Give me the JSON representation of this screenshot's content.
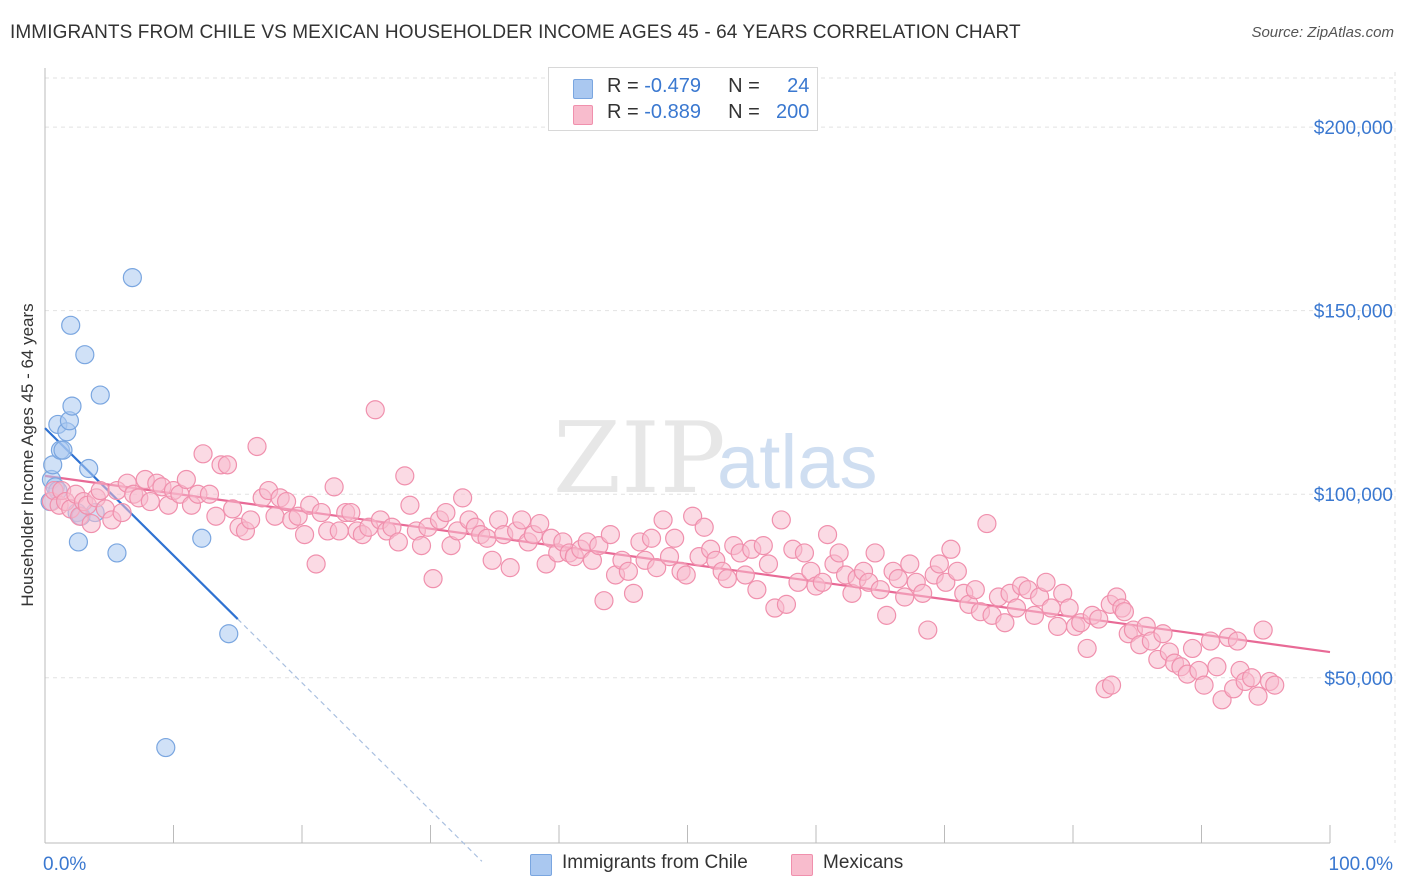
{
  "title": "IMMIGRANTS FROM CHILE VS MEXICAN HOUSEHOLDER INCOME AGES 45 - 64 YEARS CORRELATION CHART",
  "source": "Source: ZipAtlas.com",
  "watermark": {
    "zip": "ZIP",
    "atlas": "atlas"
  },
  "legend": {
    "r_label": "R =",
    "n_label": "N =",
    "rows": [
      {
        "r": "-0.479",
        "n": "24",
        "color": "#aac8f0",
        "border": "#7aa6e0"
      },
      {
        "r": "-0.889",
        "n": "200",
        "color": "#f8bccd",
        "border": "#f090ad"
      }
    ]
  },
  "bottom_legend": [
    {
      "label": "Immigrants from Chile",
      "color": "#aac8f0",
      "border": "#7aa6e0"
    },
    {
      "label": "Mexicans",
      "color": "#f8bccd",
      "border": "#f090ad"
    }
  ],
  "chart_data": {
    "type": "scatter",
    "title": "IMMIGRANTS FROM CHILE VS MEXICAN HOUSEHOLDER INCOME AGES 45 - 64 YEARS CORRELATION CHART",
    "xlabel": "",
    "ylabel": "Householder Income Ages 45 - 64 years",
    "xlim": [
      0,
      100
    ],
    "ylim": [
      5000,
      215000
    ],
    "x_tick_labels": [
      "0.0%",
      "100.0%"
    ],
    "y_ticks": [
      50000,
      100000,
      150000,
      200000
    ],
    "y_tick_labels": [
      "$50,000",
      "$100,000",
      "$150,000",
      "$200,000"
    ],
    "grid": true,
    "legend_position": "top-center",
    "series": [
      {
        "name": "Immigrants from Chile",
        "color": "#aac8f0",
        "edge": "#7aa6e0",
        "line_color": "#2f72d2",
        "trend": {
          "x": [
            0.0,
            15.0
          ],
          "y": [
            118000,
            66000
          ]
        },
        "trend_dashed": {
          "x": [
            15.0,
            34.0
          ],
          "y": [
            66000,
            0
          ]
        },
        "points": [
          [
            0.4,
            98000
          ],
          [
            0.5,
            104000
          ],
          [
            0.6,
            108000
          ],
          [
            0.8,
            102000
          ],
          [
            1.0,
            101000
          ],
          [
            1.0,
            119000
          ],
          [
            1.2,
            112000
          ],
          [
            1.4,
            112000
          ],
          [
            1.7,
            117000
          ],
          [
            1.9,
            120000
          ],
          [
            2.0,
            146000
          ],
          [
            2.1,
            124000
          ],
          [
            2.5,
            95000
          ],
          [
            2.6,
            87000
          ],
          [
            2.8,
            94000
          ],
          [
            3.1,
            138000
          ],
          [
            3.4,
            107000
          ],
          [
            3.9,
            95000
          ],
          [
            4.3,
            127000
          ],
          [
            5.6,
            84000
          ],
          [
            6.8,
            159000
          ],
          [
            9.4,
            31000
          ],
          [
            12.2,
            88000
          ],
          [
            14.3,
            62000
          ]
        ]
      },
      {
        "name": "Mexicans",
        "color": "#f8bccd",
        "edge": "#f090ad",
        "line_color": "#e86a96",
        "trend": {
          "x": [
            0.0,
            100.0
          ],
          "y": [
            105000,
            57000
          ]
        },
        "points": [
          [
            0.5,
            98000
          ],
          [
            0.7,
            101000
          ],
          [
            1.1,
            97000
          ],
          [
            1.3,
            101000
          ],
          [
            1.6,
            98000
          ],
          [
            2.0,
            96000
          ],
          [
            2.4,
            100000
          ],
          [
            2.7,
            94000
          ],
          [
            3.0,
            98000
          ],
          [
            3.3,
            97000
          ],
          [
            3.6,
            92000
          ],
          [
            4.0,
            99000
          ],
          [
            4.3,
            101000
          ],
          [
            4.7,
            96000
          ],
          [
            5.2,
            93000
          ],
          [
            5.6,
            101000
          ],
          [
            6.0,
            95000
          ],
          [
            6.4,
            103000
          ],
          [
            6.9,
            100000
          ],
          [
            7.3,
            99000
          ],
          [
            7.8,
            104000
          ],
          [
            8.2,
            98000
          ],
          [
            8.7,
            103000
          ],
          [
            9.1,
            102000
          ],
          [
            9.6,
            97000
          ],
          [
            10.0,
            101000
          ],
          [
            10.5,
            100000
          ],
          [
            11.0,
            104000
          ],
          [
            11.4,
            97000
          ],
          [
            11.9,
            100000
          ],
          [
            12.3,
            111000
          ],
          [
            12.8,
            100000
          ],
          [
            13.3,
            94000
          ],
          [
            13.7,
            108000
          ],
          [
            14.2,
            108000
          ],
          [
            14.6,
            96000
          ],
          [
            15.1,
            91000
          ],
          [
            15.6,
            90000
          ],
          [
            16.0,
            93000
          ],
          [
            16.5,
            113000
          ],
          [
            16.9,
            99000
          ],
          [
            17.4,
            101000
          ],
          [
            17.9,
            94000
          ],
          [
            18.3,
            99000
          ],
          [
            18.8,
            98000
          ],
          [
            19.2,
            93000
          ],
          [
            19.7,
            94000
          ],
          [
            20.2,
            89000
          ],
          [
            20.6,
            97000
          ],
          [
            21.1,
            81000
          ],
          [
            21.5,
            95000
          ],
          [
            22.0,
            90000
          ],
          [
            22.5,
            102000
          ],
          [
            22.9,
            90000
          ],
          [
            23.4,
            95000
          ],
          [
            23.8,
            95000
          ],
          [
            24.3,
            90000
          ],
          [
            24.7,
            89000
          ],
          [
            25.2,
            91000
          ],
          [
            25.7,
            123000
          ],
          [
            26.1,
            93000
          ],
          [
            26.6,
            90000
          ],
          [
            27.0,
            91000
          ],
          [
            27.5,
            87000
          ],
          [
            28.0,
            105000
          ],
          [
            28.4,
            97000
          ],
          [
            28.9,
            90000
          ],
          [
            29.3,
            86000
          ],
          [
            29.8,
            91000
          ],
          [
            30.2,
            77000
          ],
          [
            30.7,
            93000
          ],
          [
            31.2,
            95000
          ],
          [
            31.6,
            86000
          ],
          [
            32.1,
            90000
          ],
          [
            32.5,
            99000
          ],
          [
            33.0,
            93000
          ],
          [
            33.5,
            91000
          ],
          [
            33.9,
            89000
          ],
          [
            34.4,
            88000
          ],
          [
            34.8,
            82000
          ],
          [
            35.3,
            93000
          ],
          [
            35.7,
            89000
          ],
          [
            36.2,
            80000
          ],
          [
            36.7,
            90000
          ],
          [
            37.1,
            93000
          ],
          [
            37.6,
            87000
          ],
          [
            38.0,
            89000
          ],
          [
            38.5,
            92000
          ],
          [
            39.0,
            81000
          ],
          [
            39.4,
            88000
          ],
          [
            39.9,
            84000
          ],
          [
            40.3,
            87000
          ],
          [
            40.8,
            84000
          ],
          [
            41.2,
            83000
          ],
          [
            41.7,
            85000
          ],
          [
            42.2,
            87000
          ],
          [
            42.6,
            82000
          ],
          [
            43.1,
            86000
          ],
          [
            43.5,
            71000
          ],
          [
            44.0,
            89000
          ],
          [
            44.4,
            78000
          ],
          [
            44.9,
            82000
          ],
          [
            45.4,
            79000
          ],
          [
            45.8,
            73000
          ],
          [
            46.3,
            87000
          ],
          [
            46.7,
            82000
          ],
          [
            47.2,
            88000
          ],
          [
            47.6,
            80000
          ],
          [
            48.1,
            93000
          ],
          [
            48.6,
            83000
          ],
          [
            49.0,
            88000
          ],
          [
            49.5,
            79000
          ],
          [
            49.9,
            78000
          ],
          [
            50.4,
            94000
          ],
          [
            50.9,
            83000
          ],
          [
            51.3,
            91000
          ],
          [
            51.8,
            85000
          ],
          [
            52.2,
            82000
          ],
          [
            52.7,
            79000
          ],
          [
            53.1,
            77000
          ],
          [
            53.6,
            86000
          ],
          [
            54.1,
            84000
          ],
          [
            54.5,
            78000
          ],
          [
            55.0,
            85000
          ],
          [
            55.4,
            74000
          ],
          [
            55.9,
            86000
          ],
          [
            56.3,
            81000
          ],
          [
            56.8,
            69000
          ],
          [
            57.3,
            93000
          ],
          [
            57.7,
            70000
          ],
          [
            58.2,
            85000
          ],
          [
            58.6,
            76000
          ],
          [
            59.1,
            84000
          ],
          [
            59.6,
            79000
          ],
          [
            60.0,
            75000
          ],
          [
            60.5,
            76000
          ],
          [
            60.9,
            89000
          ],
          [
            61.4,
            81000
          ],
          [
            61.8,
            84000
          ],
          [
            62.3,
            78000
          ],
          [
            62.8,
            73000
          ],
          [
            63.2,
            77000
          ],
          [
            63.7,
            79000
          ],
          [
            64.1,
            76000
          ],
          [
            64.6,
            84000
          ],
          [
            65.0,
            74000
          ],
          [
            65.5,
            67000
          ],
          [
            66.0,
            79000
          ],
          [
            66.4,
            77000
          ],
          [
            66.9,
            72000
          ],
          [
            67.3,
            81000
          ],
          [
            67.8,
            76000
          ],
          [
            68.3,
            73000
          ],
          [
            68.7,
            63000
          ],
          [
            69.2,
            78000
          ],
          [
            69.6,
            81000
          ],
          [
            70.1,
            76000
          ],
          [
            70.5,
            85000
          ],
          [
            71.0,
            79000
          ],
          [
            71.5,
            73000
          ],
          [
            71.9,
            70000
          ],
          [
            72.4,
            74000
          ],
          [
            72.8,
            68000
          ],
          [
            73.3,
            92000
          ],
          [
            73.7,
            67000
          ],
          [
            74.2,
            72000
          ],
          [
            74.7,
            65000
          ],
          [
            75.1,
            73000
          ],
          [
            75.6,
            69000
          ],
          [
            76.0,
            75000
          ],
          [
            76.5,
            74000
          ],
          [
            77.0,
            67000
          ],
          [
            77.4,
            72000
          ],
          [
            77.9,
            76000
          ],
          [
            78.3,
            69000
          ],
          [
            78.8,
            64000
          ],
          [
            79.2,
            73000
          ],
          [
            79.7,
            69000
          ],
          [
            80.2,
            64000
          ],
          [
            80.6,
            65000
          ],
          [
            81.1,
            58000
          ],
          [
            81.5,
            67000
          ],
          [
            82.0,
            66000
          ],
          [
            82.5,
            47000
          ],
          [
            82.9,
            70000
          ],
          [
            83.4,
            72000
          ],
          [
            83.8,
            69000
          ],
          [
            84.3,
            62000
          ],
          [
            84.7,
            63000
          ],
          [
            85.2,
            59000
          ],
          [
            85.7,
            64000
          ],
          [
            86.1,
            60000
          ],
          [
            86.6,
            55000
          ],
          [
            87.0,
            62000
          ],
          [
            87.5,
            57000
          ],
          [
            87.9,
            54000
          ],
          [
            88.4,
            53000
          ],
          [
            88.9,
            51000
          ],
          [
            89.3,
            58000
          ],
          [
            89.8,
            52000
          ],
          [
            90.2,
            48000
          ],
          [
            90.7,
            60000
          ],
          [
            91.2,
            53000
          ],
          [
            91.6,
            44000
          ],
          [
            92.1,
            61000
          ],
          [
            92.5,
            47000
          ],
          [
            93.0,
            52000
          ],
          [
            93.4,
            49000
          ],
          [
            93.9,
            50000
          ],
          [
            94.4,
            45000
          ],
          [
            94.8,
            63000
          ],
          [
            95.3,
            49000
          ],
          [
            95.7,
            48000
          ],
          [
            83.0,
            48000
          ],
          [
            84.0,
            68000
          ],
          [
            92.8,
            60000
          ]
        ]
      }
    ]
  }
}
